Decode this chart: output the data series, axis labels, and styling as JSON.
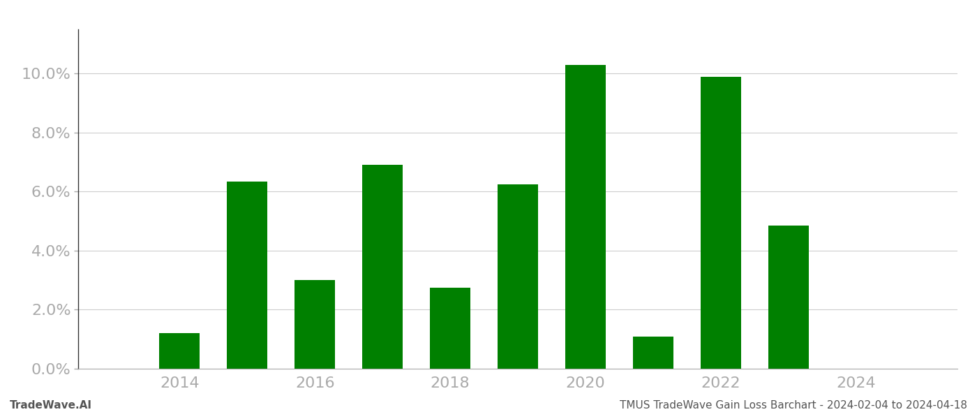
{
  "years": [
    2014,
    2015,
    2016,
    2017,
    2018,
    2019,
    2020,
    2021,
    2022,
    2023,
    2024
  ],
  "values": [
    0.012,
    0.0635,
    0.03,
    0.069,
    0.0275,
    0.0625,
    0.103,
    0.011,
    0.099,
    0.0485,
    0.0
  ],
  "bar_color": "#008000",
  "bar_width": 0.6,
  "ylim": [
    0,
    0.115
  ],
  "yticks": [
    0.0,
    0.02,
    0.04,
    0.06,
    0.08,
    0.1
  ],
  "xticks": [
    2014,
    2016,
    2018,
    2020,
    2022,
    2024
  ],
  "xlim": [
    2012.5,
    2025.5
  ],
  "footer_left": "TradeWave.AI",
  "footer_right": "TMUS TradeWave Gain Loss Barchart - 2024-02-04 to 2024-04-18",
  "footer_fontsize": 11,
  "tick_fontsize": 16,
  "tick_color": "#aaaaaa",
  "grid_color": "#cccccc",
  "background_color": "#ffffff",
  "spine_color": "#aaaaaa",
  "left_spine_color": "#333333"
}
